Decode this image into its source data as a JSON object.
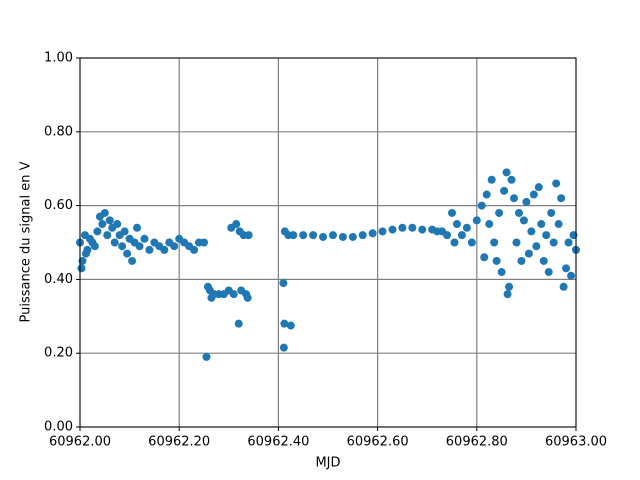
{
  "chart_data": {
    "type": "scatter",
    "x_label": "MJD",
    "y_label": "Puissance du signal en V",
    "color": "#1f77b4",
    "grid": true,
    "xlim": [
      60962.0,
      60963.0
    ],
    "xticks": [
      {
        "value": 60962.0,
        "label": "60962.00"
      },
      {
        "value": 60962.2,
        "label": "60962.20"
      },
      {
        "value": 60962.4,
        "label": "60962.40"
      },
      {
        "value": 60962.6,
        "label": "60962.60"
      },
      {
        "value": 60962.8,
        "label": "60962.80"
      },
      {
        "value": 60963.0,
        "label": "60963.00"
      }
    ],
    "ylim": [
      0,
      1
    ],
    "yticks": [
      {
        "value": 0,
        "label": "0.00"
      },
      {
        "value": 0.2,
        "label": "0.20"
      },
      {
        "value": 0.4,
        "label": "0.40"
      },
      {
        "value": 0.6,
        "label": "0.60"
      },
      {
        "value": 0.8,
        "label": "0.80"
      },
      {
        "value": 1,
        "label": "1.00"
      }
    ],
    "x": [
      60962.0,
      60962.003,
      60962.005,
      60962.01,
      60962.012,
      60962.015,
      60962.02,
      60962.025,
      60962.03,
      60962.035,
      60962.04,
      60962.045,
      60962.05,
      60962.055,
      60962.06,
      60962.065,
      60962.07,
      60962.075,
      60962.08,
      60962.085,
      60962.09,
      60962.095,
      60962.1,
      60962.105,
      60962.11,
      60962.115,
      60962.12,
      60962.13,
      60962.14,
      60962.15,
      60962.16,
      60962.17,
      60962.18,
      60962.19,
      60962.2,
      60962.21,
      60962.22,
      60962.23,
      60962.24,
      60962.25,
      60962.255,
      60962.258,
      60962.262,
      60962.265,
      60962.27,
      60962.28,
      60962.29,
      60962.3,
      60962.305,
      60962.31,
      60962.315,
      60962.32,
      60962.322,
      60962.325,
      60962.33,
      60962.335,
      60962.338,
      60962.34,
      60962.41,
      60962.412,
      60962.411,
      60962.425,
      60962.413,
      60962.42,
      60962.43,
      60962.45,
      60962.47,
      60962.49,
      60962.51,
      60962.53,
      60962.55,
      60962.57,
      60962.59,
      60962.61,
      60962.63,
      60962.65,
      60962.67,
      60962.69,
      60962.71,
      60962.72,
      60962.73,
      60962.74,
      60962.75,
      60962.755,
      60962.76,
      60962.77,
      60962.78,
      60962.79,
      60962.8,
      60962.81,
      60962.815,
      60962.82,
      60962.825,
      60962.83,
      60962.835,
      60962.84,
      60962.845,
      60962.85,
      60962.855,
      60962.86,
      60962.862,
      60962.865,
      60962.87,
      60962.875,
      60962.88,
      60962.885,
      60962.89,
      60962.895,
      60962.9,
      60962.905,
      60962.91,
      60962.915,
      60962.92,
      60962.925,
      60962.93,
      60962.935,
      60962.94,
      60962.945,
      60962.95,
      60962.955,
      60962.96,
      60962.965,
      60962.97,
      60962.975,
      60962.98,
      60962.985,
      60962.99,
      60962.995,
      60963.0
    ],
    "values": [
      0.5,
      0.43,
      0.45,
      0.52,
      0.47,
      0.48,
      0.51,
      0.5,
      0.49,
      0.53,
      0.57,
      0.55,
      0.58,
      0.52,
      0.56,
      0.54,
      0.5,
      0.55,
      0.52,
      0.49,
      0.53,
      0.47,
      0.51,
      0.45,
      0.5,
      0.54,
      0.49,
      0.51,
      0.48,
      0.5,
      0.49,
      0.48,
      0.5,
      0.49,
      0.51,
      0.5,
      0.49,
      0.48,
      0.5,
      0.5,
      0.19,
      0.38,
      0.37,
      0.35,
      0.36,
      0.36,
      0.36,
      0.37,
      0.54,
      0.36,
      0.55,
      0.28,
      0.53,
      0.37,
      0.52,
      0.36,
      0.35,
      0.52,
      0.39,
      0.28,
      0.215,
      0.275,
      0.53,
      0.52,
      0.52,
      0.52,
      0.52,
      0.515,
      0.52,
      0.515,
      0.515,
      0.52,
      0.525,
      0.53,
      0.535,
      0.54,
      0.54,
      0.535,
      0.535,
      0.53,
      0.53,
      0.52,
      0.58,
      0.5,
      0.55,
      0.52,
      0.54,
      0.5,
      0.56,
      0.6,
      0.46,
      0.63,
      0.55,
      0.67,
      0.5,
      0.45,
      0.58,
      0.42,
      0.64,
      0.69,
      0.36,
      0.38,
      0.67,
      0.62,
      0.5,
      0.58,
      0.45,
      0.56,
      0.61,
      0.47,
      0.53,
      0.63,
      0.49,
      0.65,
      0.55,
      0.45,
      0.52,
      0.42,
      0.58,
      0.5,
      0.66,
      0.55,
      0.62,
      0.38,
      0.43,
      0.5,
      0.41,
      0.52,
      0.48
    ]
  }
}
